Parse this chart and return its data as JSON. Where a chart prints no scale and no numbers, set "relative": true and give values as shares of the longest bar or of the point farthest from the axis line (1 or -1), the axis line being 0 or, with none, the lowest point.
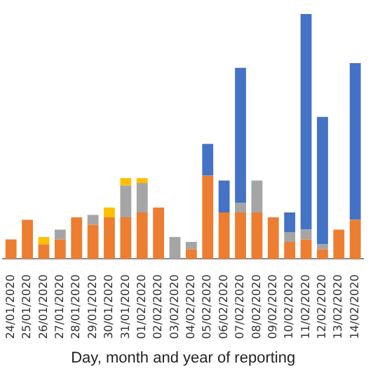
{
  "chart_data": {
    "type": "bar",
    "stacked": true,
    "relative": true,
    "xlabel": "Day, month and year of reporting",
    "categories": [
      "24/01/2020",
      "25/01/2020",
      "26/01/2020",
      "27/01/2020",
      "28/01/2020",
      "29/01/2020",
      "30/01/2020",
      "31/01/2020",
      "01/02/2020",
      "02/02/2020",
      "03/02/2020",
      "04/02/2020",
      "05/02/2020",
      "06/02/2020",
      "07/02/2020",
      "08/02/2020",
      "09/02/2020",
      "10/02/2020",
      "11/02/2020",
      "12/02/2020",
      "13/02/2020",
      "14/02/2020"
    ],
    "series": [
      {
        "color": "#ed7d31",
        "values": [
          0.08,
          0.16,
          0.06,
          0.08,
          0.17,
          0.14,
          0.17,
          0.17,
          0.19,
          0.21,
          0,
          0.04,
          0.34,
          0.19,
          0.19,
          0.19,
          0.17,
          0.07,
          0.08,
          0.04,
          0.12,
          0.16
        ]
      },
      {
        "color": "#a5a5a5",
        "values": [
          0,
          0,
          0,
          0.04,
          0,
          0.04,
          0,
          0.13,
          0.12,
          0,
          0.09,
          0.03,
          0,
          0,
          0.04,
          0.13,
          0,
          0.04,
          0.04,
          0.02,
          0,
          0
        ]
      },
      {
        "color": "#4472c4",
        "values": [
          0,
          0,
          0,
          0,
          0,
          0,
          0,
          0,
          0,
          0,
          0,
          0,
          0.13,
          0.13,
          0.55,
          0,
          0,
          0.08,
          0.88,
          0.52,
          0,
          0.64
        ]
      },
      {
        "color": "#ffc000",
        "values": [
          0,
          0,
          0.03,
          0,
          0,
          0,
          0.04,
          0.03,
          0.02,
          0,
          0,
          0,
          0,
          0,
          0,
          0,
          0,
          0,
          0,
          0,
          0,
          0
        ]
      }
    ],
    "grid": false,
    "legend": false
  }
}
